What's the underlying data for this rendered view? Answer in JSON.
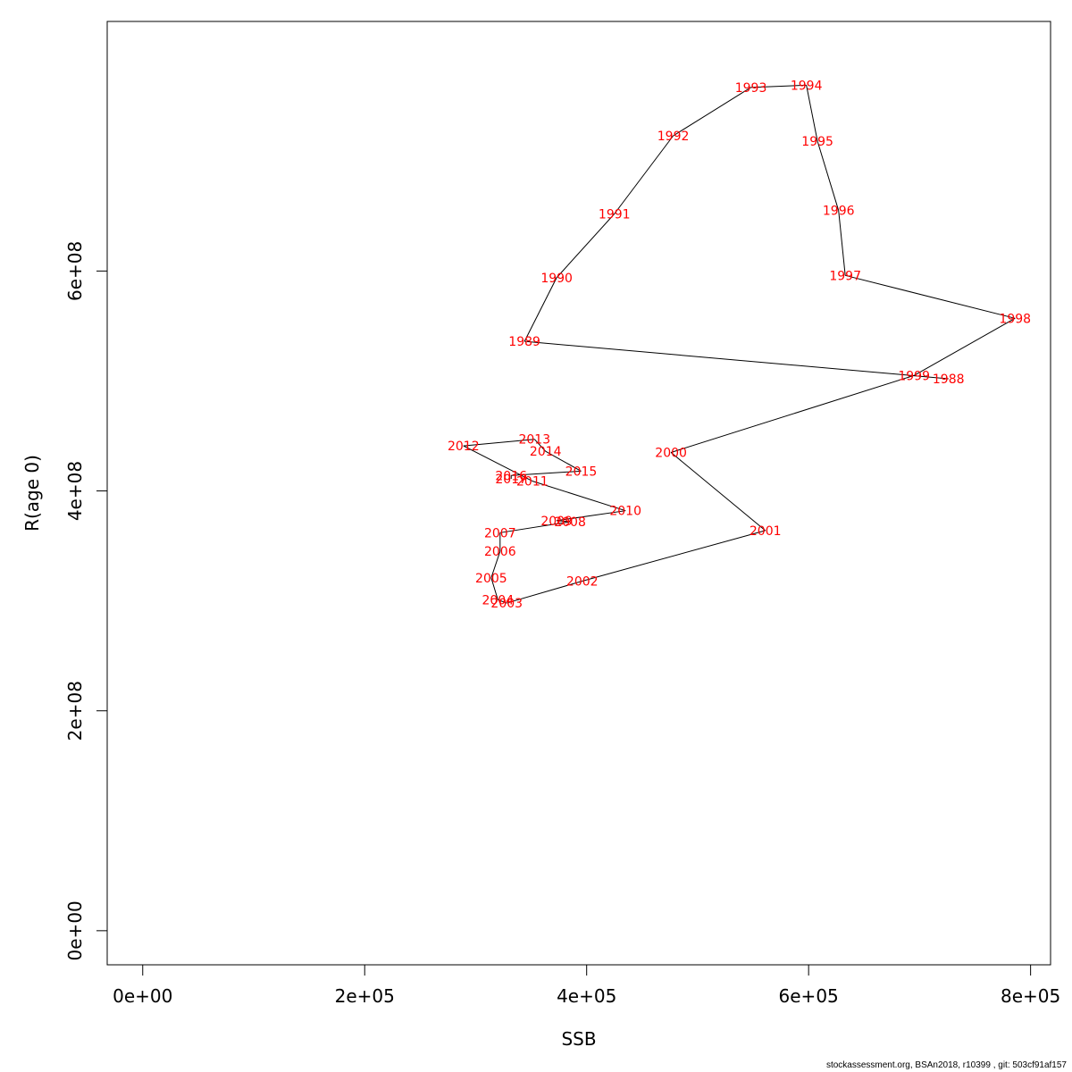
{
  "chart_data": {
    "type": "line",
    "xlabel": "SSB",
    "ylabel": "R(age 0)",
    "xlim": [
      -32000,
      818000
    ],
    "ylim": [
      -31000000,
      827000000
    ],
    "x_ticks": [
      0,
      200000,
      400000,
      600000,
      800000
    ],
    "x_tick_labels": [
      "0e+00",
      "2e+05",
      "4e+05",
      "6e+05",
      "8e+05"
    ],
    "y_ticks": [
      0,
      200000000,
      400000000,
      600000000
    ],
    "y_tick_labels": [
      "0e+00",
      "2e+08",
      "4e+08",
      "6e+08"
    ],
    "grid": false,
    "line_color": "#000000",
    "label_color": "#ff0000",
    "series": [
      {
        "points": [
          {
            "year": "1988",
            "x": 726000,
            "y": 502000000
          },
          {
            "year": "1989",
            "x": 344000,
            "y": 536000000
          },
          {
            "year": "1990",
            "x": 373000,
            "y": 594000000
          },
          {
            "year": "1991",
            "x": 425000,
            "y": 652000000
          },
          {
            "year": "1992",
            "x": 478000,
            "y": 723000000
          },
          {
            "year": "1993",
            "x": 548000,
            "y": 767000000
          },
          {
            "year": "1994",
            "x": 598000,
            "y": 769000000
          },
          {
            "year": "1995",
            "x": 608000,
            "y": 718000000
          },
          {
            "year": "1996",
            "x": 627000,
            "y": 655000000
          },
          {
            "year": "1997",
            "x": 633000,
            "y": 596000000
          },
          {
            "year": "1998",
            "x": 786000,
            "y": 557000000
          },
          {
            "year": "1999",
            "x": 695000,
            "y": 505000000
          },
          {
            "year": "2000",
            "x": 476000,
            "y": 435000000
          },
          {
            "year": "2001",
            "x": 561000,
            "y": 364000000
          },
          {
            "year": "2002",
            "x": 396000,
            "y": 318000000
          },
          {
            "year": "2003",
            "x": 328000,
            "y": 298000000
          },
          {
            "year": "2004",
            "x": 320000,
            "y": 301000000
          },
          {
            "year": "2005",
            "x": 314000,
            "y": 321000000
          },
          {
            "year": "2006",
            "x": 322000,
            "y": 345000000
          },
          {
            "year": "2007",
            "x": 322000,
            "y": 362000000
          },
          {
            "year": "2008",
            "x": 385000,
            "y": 372000000
          },
          {
            "year": "2009",
            "x": 373000,
            "y": 373000000
          },
          {
            "year": "2010",
            "x": 435000,
            "y": 382000000
          },
          {
            "year": "2011",
            "x": 351000,
            "y": 409000000
          },
          {
            "year": "2012",
            "x": 289000,
            "y": 441000000
          },
          {
            "year": "2013",
            "x": 353000,
            "y": 447000000
          },
          {
            "year": "2014",
            "x": 363000,
            "y": 436000000
          },
          {
            "year": "2015",
            "x": 395000,
            "y": 418000000
          },
          {
            "year": "2016",
            "x": 332000,
            "y": 414000000
          },
          {
            "year": "2017",
            "x": 332000,
            "y": 411000000
          }
        ]
      }
    ]
  },
  "footer": {
    "text": "stockassessment.org, BSAn2018, r10399 , git: 503cf91af157"
  }
}
